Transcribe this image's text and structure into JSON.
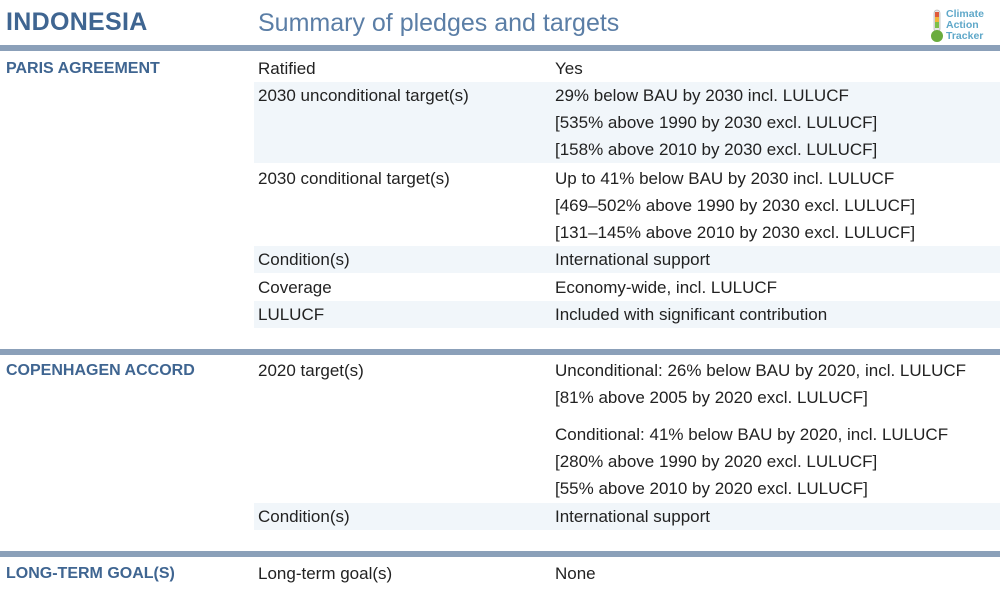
{
  "header": {
    "country": "INDONESIA",
    "subtitle": "Summary of pledges and targets",
    "logo": [
      "Climate",
      "Action",
      "Tracker"
    ]
  },
  "sections": [
    {
      "title": "PARIS AGREEMENT",
      "rows": [
        {
          "label": "Ratified",
          "values": [
            "Yes"
          ]
        },
        {
          "label": "2030 unconditional target(s)",
          "values": [
            "29% below BAU by 2030 incl. LULUCF",
            "[535% above 1990 by 2030 excl. LULUCF]",
            "[158% above 2010 by 2030 excl. LULUCF]"
          ]
        },
        {
          "label": "2030 conditional target(s)",
          "values": [
            "Up to 41% below BAU by 2030 incl. LULUCF",
            "[469–502% above 1990 by 2030 excl. LULUCF]",
            "[131–145% above 2010 by 2030 excl. LULUCF]"
          ]
        },
        {
          "label": "Condition(s)",
          "values": [
            "International support"
          ]
        },
        {
          "label": "Coverage",
          "values": [
            "Economy-wide, incl. LULUCF"
          ]
        },
        {
          "label": "LULUCF",
          "values": [
            "Included with significant contribution"
          ]
        }
      ]
    },
    {
      "title": "COPENHAGEN ACCORD",
      "rows": [
        {
          "label": "2020 target(s)",
          "values": [
            "Unconditional: 26% below BAU by 2020, incl. LULUCF",
            "[81%  above 2005 by 2020 excl. LULUCF]",
            "Conditional: 41% below BAU by 2020, incl. LULUCF",
            "[280%  above 1990 by 2020 excl. LULUCF]",
            "[55%  above 2010 by 2020 excl. LULUCF]"
          ]
        },
        {
          "label": "Condition(s)",
          "values": [
            "International support"
          ]
        }
      ]
    },
    {
      "title": "LONG-TERM GOAL(S)",
      "rows": [
        {
          "label": "Long-term goal(s)",
          "values": [
            "None"
          ]
        }
      ]
    }
  ],
  "colors": {
    "title": "#3f6591",
    "rule": "#8ba0b9",
    "shade": "#f1f6fa"
  }
}
